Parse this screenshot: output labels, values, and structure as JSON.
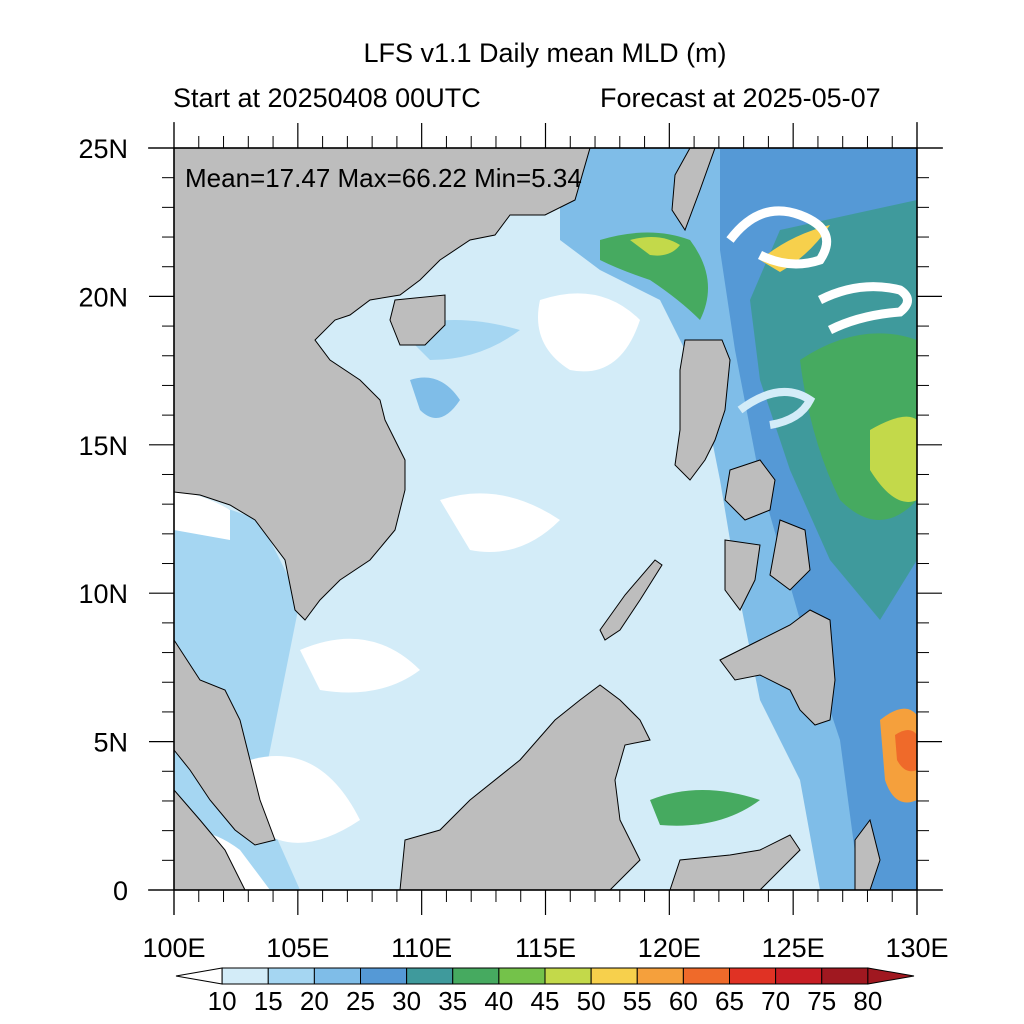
{
  "title": "LFS v1.1 Daily mean MLD (m)",
  "subtitle_left": "Start at 20250408 00UTC",
  "subtitle_right": "Forecast at 2025-05-07",
  "stats_text": "Mean=17.47  Max=66.22  Min=5.34",
  "stats": {
    "mean": 17.47,
    "max": 66.22,
    "min": 5.34
  },
  "map": {
    "lon_range": [
      100,
      130
    ],
    "lat_range": [
      0,
      25
    ],
    "x_ticks": [
      "100E",
      "105E",
      "110E",
      "115E",
      "120E",
      "125E",
      "130E"
    ],
    "y_ticks": [
      "0",
      "5N",
      "10N",
      "15N",
      "20N",
      "25N"
    ],
    "land_color": "#bdbdbd",
    "ocean_base_color": "#d3ecf8"
  },
  "colorbar": {
    "labels": [
      "10",
      "15",
      "20",
      "25",
      "30",
      "35",
      "40",
      "45",
      "50",
      "55",
      "60",
      "65",
      "70",
      "75",
      "80"
    ],
    "colors": [
      "#ffffff",
      "#d3ecf8",
      "#a5d6f2",
      "#7fbde8",
      "#5599d6",
      "#3f9a9c",
      "#46aa60",
      "#74c24a",
      "#c3d94a",
      "#f7d04c",
      "#f5a03c",
      "#ef6a2a",
      "#e03224",
      "#c81e24",
      "#a01820"
    ]
  }
}
